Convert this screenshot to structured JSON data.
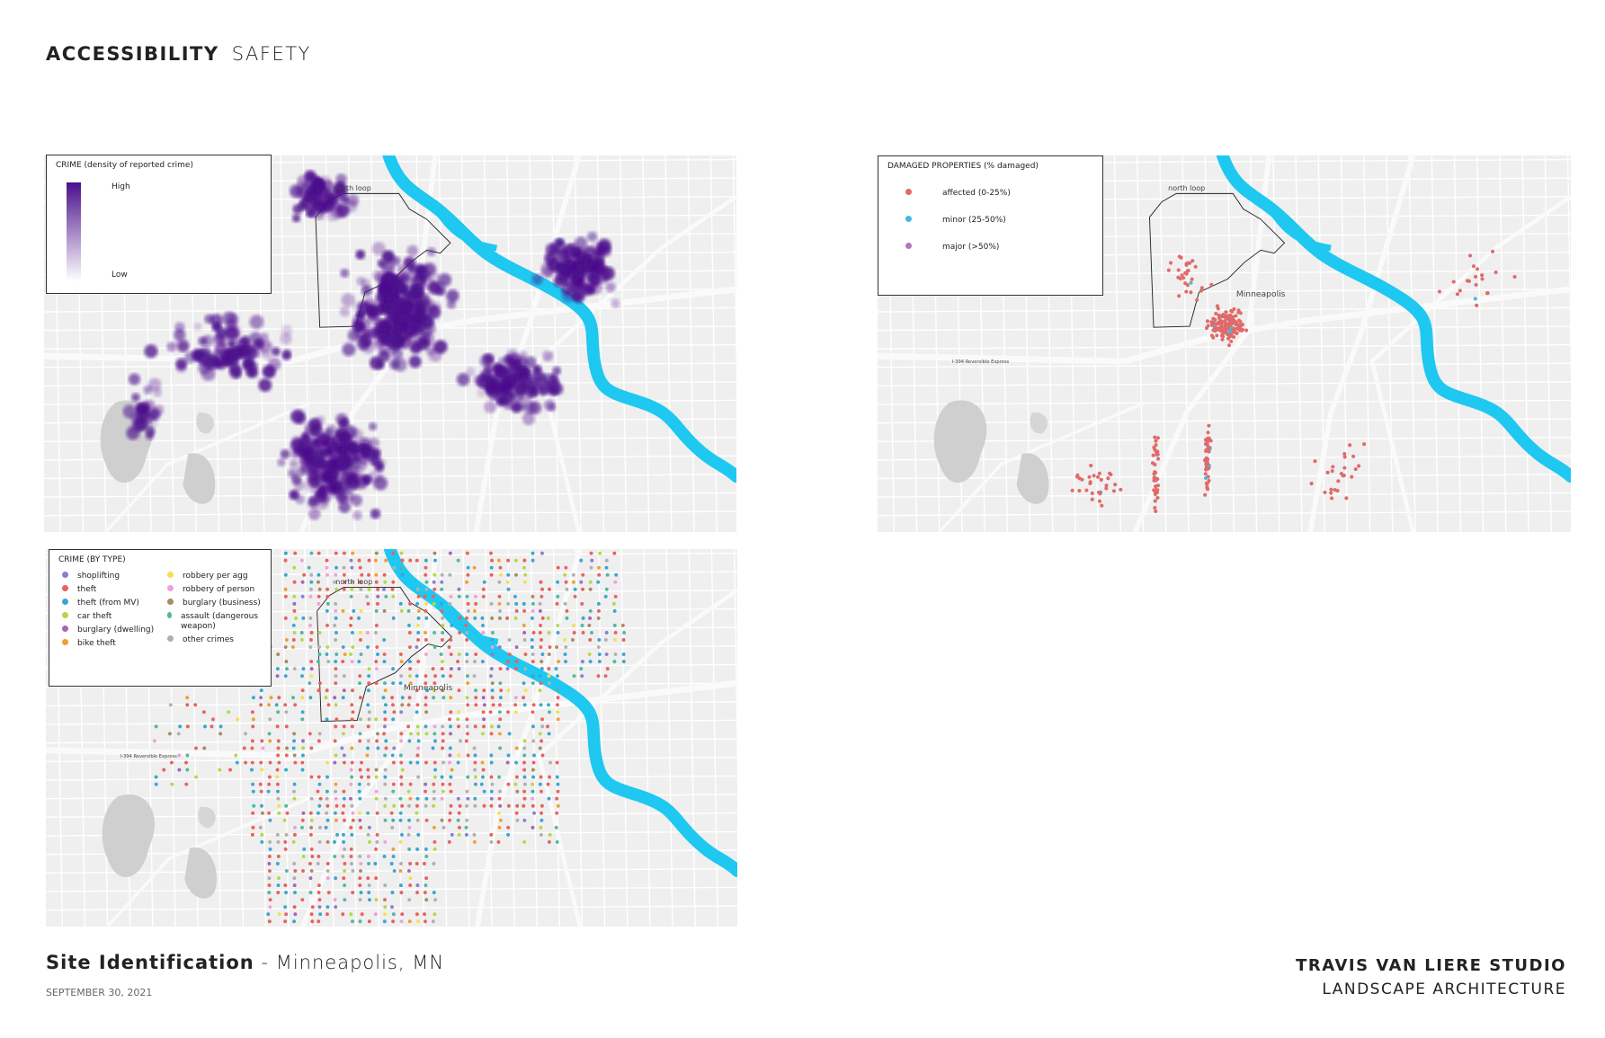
{
  "header": {
    "title": "ACCESSIBILITY",
    "subtitle": "SAFETY"
  },
  "maps": [
    {
      "legend": {
        "title": "CRIME (density of reported crime)",
        "high": "High",
        "low": "Low",
        "color": "#4b0f8c"
      },
      "labels": [
        "north loop"
      ]
    },
    {
      "legend": {
        "title": "DAMAGED PROPERTIES (% damaged)",
        "items": [
          {
            "label": "affected (0-25%)",
            "color": "#e06a6a"
          },
          {
            "label": "minor (25-50%)",
            "color": "#4ab8d8"
          },
          {
            "label": "major (>50%)",
            "color": "#b078b8"
          }
        ]
      },
      "labels": [
        "north loop",
        "Minneapolis",
        "I-394 Reversible Express"
      ]
    },
    {
      "legend": {
        "title": "CRIME (BY TYPE)",
        "items": [
          {
            "label": "shoplifting",
            "color": "#8a7fd0"
          },
          {
            "label": "theft",
            "color": "#e8625e"
          },
          {
            "label": "theft (from MV)",
            "color": "#3aa6d0"
          },
          {
            "label": "car theft",
            "color": "#b5d84a"
          },
          {
            "label": "burglary (dwelling)",
            "color": "#a565b5"
          },
          {
            "label": "bike theft",
            "color": "#f0a030"
          },
          {
            "label": "robbery per agg",
            "color": "#f5e050"
          },
          {
            "label": "robbery of person",
            "color": "#f0a0d8"
          },
          {
            "label": "burglary (business)",
            "color": "#a88a60"
          },
          {
            "label": "assault (dangerous weapon)",
            "color": "#50b8a0"
          },
          {
            "label": "other crimes",
            "color": "#b0b0b0"
          }
        ]
      },
      "labels": [
        "north loop",
        "Minneapolis",
        "I-394 Reversible Express"
      ]
    }
  ],
  "footer": {
    "project": "Site Identification",
    "location": "- Minneapolis, MN",
    "date": "SEPTEMBER 30, 2021",
    "studio": "TRAVIS VAN LIERE STUDIO",
    "discipline": "LANDSCAPE ARCHITECTURE"
  }
}
